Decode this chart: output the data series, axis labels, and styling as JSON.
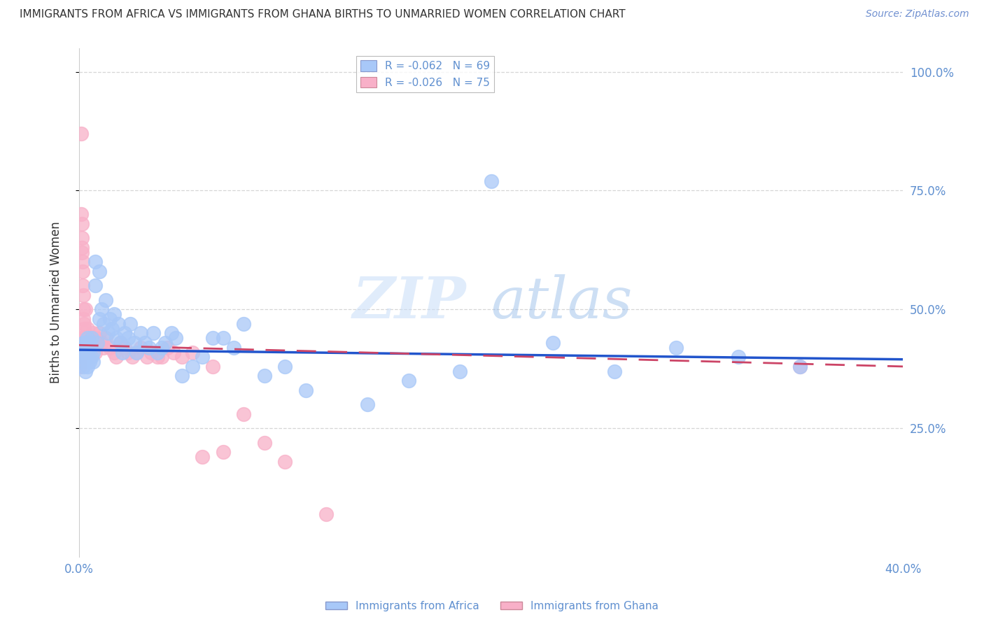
{
  "title": "IMMIGRANTS FROM AFRICA VS IMMIGRANTS FROM GHANA BIRTHS TO UNMARRIED WOMEN CORRELATION CHART",
  "source": "Source: ZipAtlas.com",
  "ylabel_left": "Births to Unmarried Women",
  "xlim": [
    0.0,
    0.4
  ],
  "ylim": [
    -0.02,
    1.05
  ],
  "xtick_positions": [
    0.0,
    0.4
  ],
  "xtick_labels": [
    "0.0%",
    "40.0%"
  ],
  "yticks_right": [
    0.25,
    0.5,
    0.75,
    1.0
  ],
  "ytick_labels_right": [
    "25.0%",
    "50.0%",
    "75.0%",
    "100.0%"
  ],
  "legend_entries": [
    {
      "label": "R = -0.062   N = 69",
      "color": "#a8c8f8"
    },
    {
      "label": "R = -0.026   N = 75",
      "color": "#f8b0c8"
    }
  ],
  "watermark_zip": "ZIP",
  "watermark_atlas": "atlas",
  "blue_color": "#a8c8f8",
  "pink_color": "#f8b0c8",
  "blue_line_color": "#2255cc",
  "pink_line_color": "#cc4466",
  "background_color": "#ffffff",
  "grid_color": "#cccccc",
  "title_color": "#333333",
  "source_color": "#7090d0",
  "tick_label_color": "#6090d0",
  "ylabel_color": "#333333",
  "africa_x": [
    0.0005,
    0.001,
    0.001,
    0.0015,
    0.002,
    0.002,
    0.0025,
    0.003,
    0.003,
    0.003,
    0.004,
    0.004,
    0.004,
    0.005,
    0.005,
    0.005,
    0.006,
    0.006,
    0.007,
    0.007,
    0.008,
    0.008,
    0.009,
    0.01,
    0.01,
    0.011,
    0.012,
    0.013,
    0.014,
    0.015,
    0.016,
    0.017,
    0.018,
    0.019,
    0.02,
    0.021,
    0.022,
    0.024,
    0.025,
    0.027,
    0.028,
    0.03,
    0.032,
    0.034,
    0.036,
    0.038,
    0.04,
    0.042,
    0.045,
    0.047,
    0.05,
    0.055,
    0.06,
    0.065,
    0.07,
    0.075,
    0.08,
    0.09,
    0.1,
    0.11,
    0.14,
    0.16,
    0.185,
    0.2,
    0.23,
    0.26,
    0.29,
    0.32,
    0.35
  ],
  "africa_y": [
    0.41,
    0.39,
    0.42,
    0.4,
    0.38,
    0.43,
    0.41,
    0.4,
    0.43,
    0.37,
    0.41,
    0.38,
    0.44,
    0.42,
    0.39,
    0.43,
    0.4,
    0.44,
    0.41,
    0.39,
    0.6,
    0.55,
    0.43,
    0.58,
    0.48,
    0.5,
    0.47,
    0.52,
    0.45,
    0.48,
    0.46,
    0.49,
    0.44,
    0.47,
    0.43,
    0.41,
    0.45,
    0.44,
    0.47,
    0.43,
    0.41,
    0.45,
    0.43,
    0.42,
    0.45,
    0.41,
    0.42,
    0.43,
    0.45,
    0.44,
    0.36,
    0.38,
    0.4,
    0.44,
    0.44,
    0.42,
    0.47,
    0.36,
    0.38,
    0.33,
    0.3,
    0.35,
    0.37,
    0.77,
    0.43,
    0.37,
    0.42,
    0.4,
    0.38
  ],
  "ghana_x": [
    0.0002,
    0.0003,
    0.0004,
    0.0004,
    0.0005,
    0.0005,
    0.0006,
    0.0007,
    0.0007,
    0.0008,
    0.0008,
    0.001,
    0.001,
    0.001,
    0.0012,
    0.0013,
    0.0014,
    0.0015,
    0.0015,
    0.0016,
    0.0017,
    0.0018,
    0.002,
    0.002,
    0.0022,
    0.0023,
    0.0025,
    0.0027,
    0.003,
    0.003,
    0.0032,
    0.0034,
    0.0035,
    0.004,
    0.004,
    0.0042,
    0.0045,
    0.005,
    0.005,
    0.006,
    0.006,
    0.007,
    0.007,
    0.008,
    0.008,
    0.009,
    0.01,
    0.011,
    0.012,
    0.013,
    0.015,
    0.017,
    0.018,
    0.02,
    0.022,
    0.024,
    0.026,
    0.028,
    0.03,
    0.033,
    0.035,
    0.038,
    0.04,
    0.043,
    0.046,
    0.05,
    0.055,
    0.06,
    0.065,
    0.07,
    0.08,
    0.09,
    0.1,
    0.12,
    0.35
  ],
  "ghana_y": [
    0.42,
    0.4,
    0.43,
    0.38,
    0.42,
    0.39,
    0.44,
    0.41,
    0.4,
    0.42,
    0.43,
    0.87,
    0.41,
    0.43,
    0.7,
    0.68,
    0.65,
    0.63,
    0.62,
    0.6,
    0.58,
    0.55,
    0.53,
    0.5,
    0.48,
    0.47,
    0.46,
    0.44,
    0.5,
    0.43,
    0.44,
    0.43,
    0.42,
    0.46,
    0.44,
    0.43,
    0.42,
    0.44,
    0.41,
    0.43,
    0.44,
    0.45,
    0.43,
    0.41,
    0.44,
    0.43,
    0.45,
    0.43,
    0.42,
    0.44,
    0.42,
    0.41,
    0.4,
    0.43,
    0.42,
    0.41,
    0.4,
    0.41,
    0.42,
    0.4,
    0.41,
    0.4,
    0.4,
    0.42,
    0.41,
    0.4,
    0.41,
    0.19,
    0.38,
    0.2,
    0.28,
    0.22,
    0.18,
    0.07,
    0.38
  ],
  "blue_line_x": [
    0.0,
    0.4
  ],
  "blue_line_y": [
    0.415,
    0.395
  ],
  "pink_line_x": [
    0.0,
    0.4
  ],
  "pink_line_y": [
    0.425,
    0.38
  ]
}
